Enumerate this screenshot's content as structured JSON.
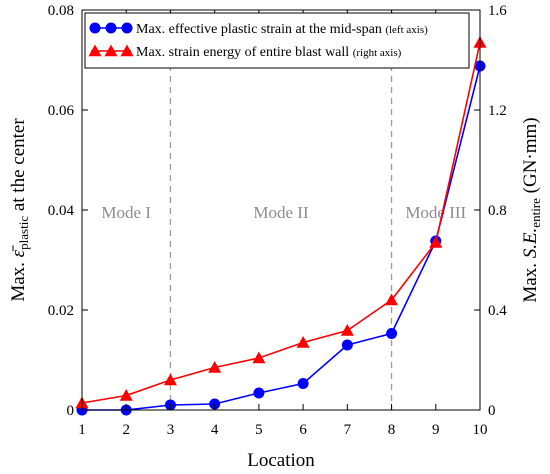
{
  "chart_data": {
    "type": "line",
    "x": [
      1,
      2,
      3,
      4,
      5,
      6,
      7,
      8,
      9,
      10
    ],
    "xlabel": "Location",
    "xlim": [
      1,
      10
    ],
    "x_ticks": [
      "1",
      "2",
      "3",
      "4",
      "5",
      "6",
      "7",
      "8",
      "9",
      "10"
    ],
    "y_left": {
      "label_prefix": "Max. ",
      "label_symbol": "ε̄",
      "label_sub": "plastic",
      "label_suffix": " at the center",
      "lim": [
        0,
        0.08
      ],
      "ticks": [
        "0",
        "0.02",
        "0.04",
        "0.06",
        "0.08"
      ]
    },
    "y_right": {
      "label_prefix": "Max. ",
      "label_symbol": "S.E.",
      "label_sub": "entire",
      "label_suffix": " (GN·mm)",
      "lim": [
        0,
        1.6
      ],
      "ticks": [
        "0",
        "0.4",
        "0.8",
        "1.2",
        "1.6"
      ]
    },
    "series": [
      {
        "name": "Max. effective plastic strain at the mid-span",
        "note": "(left axis)",
        "axis": "left",
        "color": "#0000ff",
        "marker": "circle",
        "values": [
          0.0,
          0.0,
          0.001,
          0.0012,
          0.0034,
          0.0053,
          0.013,
          0.0153,
          0.0338,
          0.0688
        ]
      },
      {
        "name": "Max. strain energy of entire blast wall",
        "note": "(right axis)",
        "axis": "right",
        "color": "#ff0000",
        "marker": "triangle",
        "values": [
          0.028,
          0.058,
          0.12,
          0.17,
          0.208,
          0.27,
          0.318,
          0.44,
          0.67,
          1.47
        ]
      }
    ],
    "dividers": [
      3,
      8
    ],
    "modes": [
      {
        "label": "Mode I",
        "x": 2
      },
      {
        "label": "Mode II",
        "x": 5.5
      },
      {
        "label": "Mode III",
        "x": 9
      }
    ],
    "grid": false,
    "legend_position": "top-left"
  }
}
